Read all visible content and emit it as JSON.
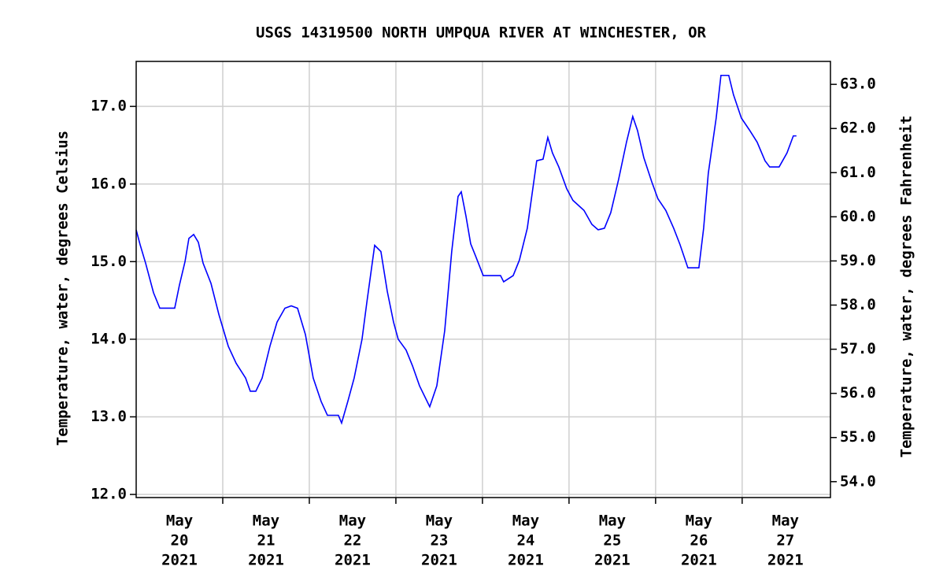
{
  "chart_data": {
    "type": "line",
    "title": "USGS 14319500 NORTH UMPQUA RIVER AT WINCHESTER, OR",
    "y_label": "Temperature, water, degrees Celsius",
    "y2_label": "Temperature, water, degrees Fahrenheit",
    "xlim": [
      20,
      28.02
    ],
    "xticks": [
      {
        "value": 20.5,
        "label": [
          "May",
          "20",
          "2021"
        ]
      },
      {
        "value": 21.5,
        "label": [
          "May",
          "21",
          "2021"
        ]
      },
      {
        "value": 22.5,
        "label": [
          "May",
          "22",
          "2021"
        ]
      },
      {
        "value": 23.5,
        "label": [
          "May",
          "23",
          "2021"
        ]
      },
      {
        "value": 24.5,
        "label": [
          "May",
          "24",
          "2021"
        ]
      },
      {
        "value": 25.5,
        "label": [
          "May",
          "25",
          "2021"
        ]
      },
      {
        "value": 26.5,
        "label": [
          "May",
          "26",
          "2021"
        ]
      },
      {
        "value": 27.5,
        "label": [
          "May",
          "27",
          "2021"
        ]
      }
    ],
    "xgrid": [
      21,
      22,
      23,
      24,
      25,
      26,
      27
    ],
    "ylim": [
      11.96,
      17.58
    ],
    "yticks": [
      {
        "value": 12,
        "label": "12.0"
      },
      {
        "value": 13,
        "label": "13.0"
      },
      {
        "value": 14,
        "label": "14.0"
      },
      {
        "value": 15,
        "label": "15.0"
      },
      {
        "value": 16,
        "label": "16.0"
      },
      {
        "value": 17,
        "label": "17.0"
      }
    ],
    "y2lim": [
      53.64,
      63.52
    ],
    "y2ticks": [
      {
        "value": 54,
        "label": "54.0"
      },
      {
        "value": 55,
        "label": "55.0"
      },
      {
        "value": 56,
        "label": "56.0"
      },
      {
        "value": 57,
        "label": "57.0"
      },
      {
        "value": 58,
        "label": "58.0"
      },
      {
        "value": 59,
        "label": "59.0"
      },
      {
        "value": 60,
        "label": "60.0"
      },
      {
        "value": 61,
        "label": "61.0"
      },
      {
        "value": 62,
        "label": "62.0"
      },
      {
        "value": 63,
        "label": "63.0"
      }
    ],
    "grid": true,
    "x": [
      20.0,
      20.045,
      20.109,
      20.2,
      20.273,
      20.445,
      20.5,
      20.564,
      20.609,
      20.664,
      20.718,
      20.773,
      20.864,
      20.955,
      21.064,
      21.155,
      21.264,
      21.318,
      21.382,
      21.455,
      21.545,
      21.627,
      21.718,
      21.791,
      21.864,
      21.955,
      22.045,
      22.136,
      22.209,
      22.336,
      22.373,
      22.445,
      22.518,
      22.609,
      22.664,
      22.755,
      22.827,
      22.9,
      22.973,
      23.027,
      23.118,
      23.191,
      23.273,
      23.391,
      23.473,
      23.564,
      23.645,
      23.718,
      23.755,
      23.809,
      23.864,
      23.918,
      24.009,
      24.209,
      24.245,
      24.355,
      24.427,
      24.518,
      24.627,
      24.7,
      24.755,
      24.809,
      24.882,
      24.973,
      25.045,
      25.173,
      25.264,
      25.336,
      25.409,
      25.482,
      25.573,
      25.664,
      25.736,
      25.791,
      25.864,
      25.955,
      26.027,
      26.118,
      26.209,
      26.282,
      26.373,
      26.5,
      26.555,
      26.609,
      26.7,
      26.755,
      26.845,
      26.9,
      26.991,
      27.082,
      27.173,
      27.264,
      27.318,
      27.427,
      27.518,
      27.591,
      27.627
    ],
    "series": [
      {
        "color": "#0000ff",
        "values": [
          15.41,
          15.22,
          14.98,
          14.6,
          14.4,
          14.4,
          14.7,
          15.0,
          15.3,
          15.35,
          15.25,
          14.98,
          14.72,
          14.32,
          13.91,
          13.69,
          13.5,
          13.33,
          13.33,
          13.5,
          13.91,
          14.22,
          14.4,
          14.43,
          14.4,
          14.06,
          13.5,
          13.2,
          13.02,
          13.02,
          12.92,
          13.2,
          13.5,
          14.0,
          14.47,
          15.21,
          15.13,
          14.62,
          14.22,
          14.0,
          13.86,
          13.66,
          13.4,
          13.13,
          13.4,
          14.11,
          15.13,
          15.84,
          15.9,
          15.59,
          15.23,
          15.08,
          14.82,
          14.82,
          14.74,
          14.82,
          15.02,
          15.43,
          16.3,
          16.32,
          16.6,
          16.4,
          16.22,
          15.94,
          15.79,
          15.66,
          15.48,
          15.41,
          15.43,
          15.63,
          16.06,
          16.54,
          16.87,
          16.69,
          16.34,
          16.03,
          15.81,
          15.66,
          15.43,
          15.22,
          14.92,
          14.92,
          15.43,
          16.14,
          16.85,
          17.4,
          17.4,
          17.15,
          16.85,
          16.7,
          16.54,
          16.3,
          16.22,
          16.22,
          16.4,
          16.62,
          16.62
        ]
      }
    ]
  }
}
